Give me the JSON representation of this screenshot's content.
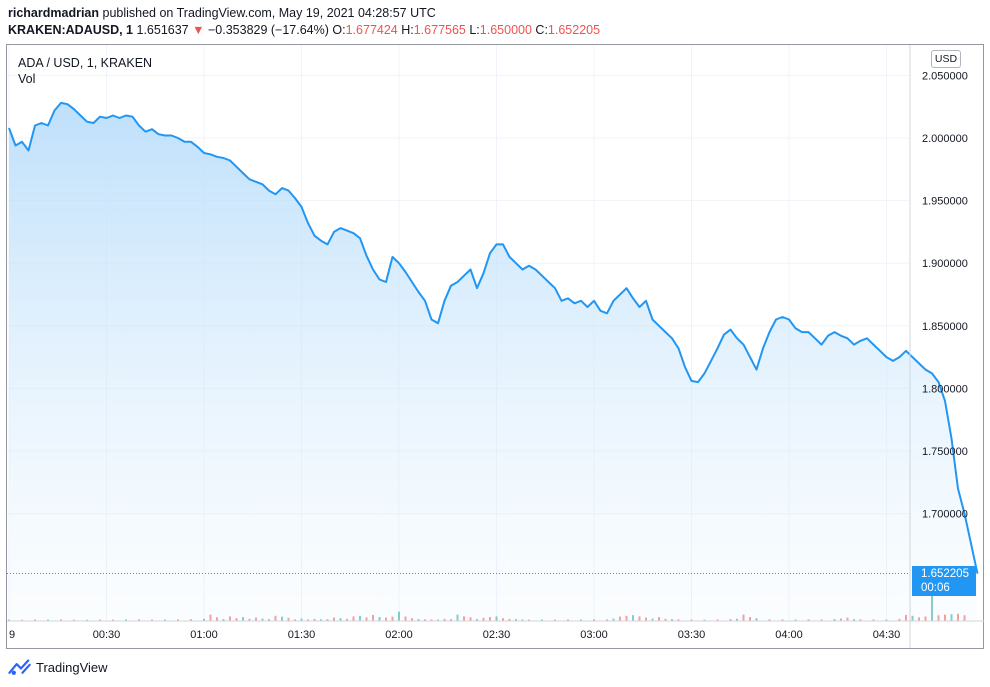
{
  "header": {
    "author": "richardmadrian",
    "published_text": " published on TradingView.com, May 19, 2021 04:28:57 UTC",
    "symbol": "KRAKEN:ADAUSD, 1",
    "last": "1.651637",
    "arrow": "▼",
    "change": "−0.353829 (−17.64%)",
    "o_label": "O:",
    "o_value": "1.677424",
    "h_label": "H:",
    "h_value": "1.677565",
    "l_label": "L:",
    "l_value": "1.650000",
    "c_label": "C:",
    "c_value": "1.652205"
  },
  "legend": {
    "title": "ADA / USD, 1, KRAKEN",
    "volume": "Vol"
  },
  "price_scale": {
    "currency": "USD"
  },
  "price_tag": {
    "price": "1.652205",
    "countdown": "00:06"
  },
  "footer": {
    "brand": "TradingView"
  },
  "colors": {
    "line": "#2196f3",
    "area_top": "#bbdefb",
    "vol_up": "#26a69a",
    "vol_down": "#ef5350",
    "grid": "#f0f3fa",
    "axis_text": "#131722"
  },
  "chart_data": {
    "type": "area",
    "title": "ADA / USD, 1, KRAKEN",
    "x_tick_labels": [
      "9",
      "00:30",
      "01:00",
      "01:30",
      "02:00",
      "02:30",
      "03:00",
      "03:30",
      "04:00",
      "04:30"
    ],
    "y_tick_labels": [
      "2.050000",
      "2.000000",
      "1.950000",
      "1.900000",
      "1.850000",
      "1.800000",
      "1.750000",
      "1.700000"
    ],
    "y_ticks": [
      2.05,
      2.0,
      1.95,
      1.9,
      1.85,
      1.8,
      1.75,
      1.7
    ],
    "ylim": [
      1.628,
      2.069
    ],
    "x_range_minutes": [
      0,
      290
    ],
    "last_price": 1.652205,
    "grid": true,
    "series": [
      {
        "values": [
          [
            0,
            2.008
          ],
          [
            2,
            1.994
          ],
          [
            4,
            1.997
          ],
          [
            6,
            1.99
          ],
          [
            8,
            2.01
          ],
          [
            10,
            2.012
          ],
          [
            12,
            2.01
          ],
          [
            14,
            2.022
          ],
          [
            16,
            2.028
          ],
          [
            18,
            2.027
          ],
          [
            20,
            2.023
          ],
          [
            22,
            2.018
          ],
          [
            24,
            2.013
          ],
          [
            26,
            2.012
          ],
          [
            28,
            2.017
          ],
          [
            30,
            2.016
          ],
          [
            32,
            2.018
          ],
          [
            34,
            2.016
          ],
          [
            36,
            2.018
          ],
          [
            38,
            2.017
          ],
          [
            40,
            2.01
          ],
          [
            42,
            2.005
          ],
          [
            44,
            2.007
          ],
          [
            46,
            2.003
          ],
          [
            48,
            2.002
          ],
          [
            50,
            2.002
          ],
          [
            52,
            2.0
          ],
          [
            54,
            1.997
          ],
          [
            56,
            1.997
          ],
          [
            58,
            1.993
          ],
          [
            60,
            1.988
          ],
          [
            62,
            1.987
          ],
          [
            64,
            1.985
          ],
          [
            66,
            1.984
          ],
          [
            68,
            1.982
          ],
          [
            70,
            1.977
          ],
          [
            72,
            1.972
          ],
          [
            74,
            1.967
          ],
          [
            76,
            1.965
          ],
          [
            78,
            1.963
          ],
          [
            80,
            1.958
          ],
          [
            82,
            1.955
          ],
          [
            84,
            1.96
          ],
          [
            86,
            1.958
          ],
          [
            88,
            1.952
          ],
          [
            90,
            1.945
          ],
          [
            92,
            1.932
          ],
          [
            94,
            1.922
          ],
          [
            96,
            1.918
          ],
          [
            98,
            1.915
          ],
          [
            100,
            1.925
          ],
          [
            102,
            1.928
          ],
          [
            104,
            1.926
          ],
          [
            106,
            1.924
          ],
          [
            108,
            1.92
          ],
          [
            110,
            1.906
          ],
          [
            112,
            1.895
          ],
          [
            114,
            1.887
          ],
          [
            116,
            1.885
          ],
          [
            118,
            1.905
          ],
          [
            120,
            1.9
          ],
          [
            122,
            1.893
          ],
          [
            124,
            1.885
          ],
          [
            126,
            1.877
          ],
          [
            128,
            1.87
          ],
          [
            130,
            1.855
          ],
          [
            132,
            1.852
          ],
          [
            134,
            1.87
          ],
          [
            136,
            1.882
          ],
          [
            138,
            1.885
          ],
          [
            140,
            1.89
          ],
          [
            142,
            1.895
          ],
          [
            144,
            1.88
          ],
          [
            146,
            1.892
          ],
          [
            148,
            1.908
          ],
          [
            150,
            1.915
          ],
          [
            152,
            1.915
          ],
          [
            154,
            1.905
          ],
          [
            156,
            1.9
          ],
          [
            158,
            1.895
          ],
          [
            160,
            1.898
          ],
          [
            162,
            1.895
          ],
          [
            164,
            1.89
          ],
          [
            166,
            1.885
          ],
          [
            168,
            1.88
          ],
          [
            170,
            1.87
          ],
          [
            172,
            1.872
          ],
          [
            174,
            1.868
          ],
          [
            176,
            1.87
          ],
          [
            178,
            1.865
          ],
          [
            180,
            1.87
          ],
          [
            182,
            1.862
          ],
          [
            184,
            1.86
          ],
          [
            186,
            1.87
          ],
          [
            188,
            1.875
          ],
          [
            190,
            1.88
          ],
          [
            192,
            1.872
          ],
          [
            194,
            1.865
          ],
          [
            196,
            1.87
          ],
          [
            198,
            1.855
          ],
          [
            200,
            1.85
          ],
          [
            202,
            1.845
          ],
          [
            204,
            1.84
          ],
          [
            206,
            1.832
          ],
          [
            208,
            1.817
          ],
          [
            210,
            1.806
          ],
          [
            212,
            1.805
          ],
          [
            214,
            1.812
          ],
          [
            216,
            1.822
          ],
          [
            218,
            1.832
          ],
          [
            220,
            1.843
          ],
          [
            222,
            1.847
          ],
          [
            224,
            1.84
          ],
          [
            226,
            1.835
          ],
          [
            228,
            1.825
          ],
          [
            230,
            1.815
          ],
          [
            232,
            1.832
          ],
          [
            234,
            1.845
          ],
          [
            236,
            1.855
          ],
          [
            238,
            1.857
          ],
          [
            240,
            1.855
          ],
          [
            242,
            1.848
          ],
          [
            244,
            1.845
          ],
          [
            246,
            1.845
          ],
          [
            248,
            1.84
          ],
          [
            250,
            1.835
          ],
          [
            252,
            1.842
          ],
          [
            254,
            1.845
          ],
          [
            256,
            1.842
          ],
          [
            258,
            1.84
          ],
          [
            260,
            1.835
          ],
          [
            262,
            1.838
          ],
          [
            264,
            1.84
          ],
          [
            266,
            1.835
          ],
          [
            268,
            1.83
          ],
          [
            270,
            1.825
          ],
          [
            272,
            1.822
          ],
          [
            274,
            1.825
          ],
          [
            276,
            1.83
          ],
          [
            278,
            1.825
          ],
          [
            280,
            1.82
          ],
          [
            282,
            1.815
          ],
          [
            284,
            1.812
          ],
          [
            286,
            1.805
          ],
          [
            288,
            1.79
          ],
          [
            290,
            1.76
          ],
          [
            292,
            1.72
          ],
          [
            294,
            1.7
          ],
          [
            296,
            1.676
          ],
          [
            298,
            1.652
          ]
        ]
      }
    ],
    "volume_series": [
      {
        "t": 0,
        "v": 0.03
      },
      {
        "t": 4,
        "v": 0.02
      },
      {
        "t": 8,
        "v": 0.04
      },
      {
        "t": 12,
        "v": 0.03
      },
      {
        "t": 16,
        "v": 0.05
      },
      {
        "t": 20,
        "v": 0.03
      },
      {
        "t": 24,
        "v": 0.02
      },
      {
        "t": 28,
        "v": 0.04
      },
      {
        "t": 32,
        "v": 0.03
      },
      {
        "t": 36,
        "v": 0.05
      },
      {
        "t": 40,
        "v": 0.06
      },
      {
        "t": 44,
        "v": 0.03
      },
      {
        "t": 48,
        "v": 0.04
      },
      {
        "t": 52,
        "v": 0.05
      },
      {
        "t": 56,
        "v": 0.07
      },
      {
        "t": 60,
        "v": 0.1
      },
      {
        "t": 62,
        "v": 0.45
      },
      {
        "t": 64,
        "v": 0.22
      },
      {
        "t": 66,
        "v": 0.08
      },
      {
        "t": 68,
        "v": 0.3
      },
      {
        "t": 70,
        "v": 0.15
      },
      {
        "t": 72,
        "v": 0.25
      },
      {
        "t": 74,
        "v": 0.1
      },
      {
        "t": 76,
        "v": 0.2
      },
      {
        "t": 78,
        "v": 0.12
      },
      {
        "t": 80,
        "v": 0.08
      },
      {
        "t": 82,
        "v": 0.35
      },
      {
        "t": 84,
        "v": 0.28
      },
      {
        "t": 86,
        "v": 0.18
      },
      {
        "t": 88,
        "v": 0.06
      },
      {
        "t": 90,
        "v": 0.12
      },
      {
        "t": 92,
        "v": 0.05
      },
      {
        "t": 94,
        "v": 0.1
      },
      {
        "t": 96,
        "v": 0.06
      },
      {
        "t": 98,
        "v": 0.08
      },
      {
        "t": 100,
        "v": 0.2
      },
      {
        "t": 102,
        "v": 0.15
      },
      {
        "t": 104,
        "v": 0.1
      },
      {
        "t": 106,
        "v": 0.3
      },
      {
        "t": 108,
        "v": 0.35
      },
      {
        "t": 110,
        "v": 0.22
      },
      {
        "t": 112,
        "v": 0.42
      },
      {
        "t": 114,
        "v": 0.25
      },
      {
        "t": 116,
        "v": 0.2
      },
      {
        "t": 118,
        "v": 0.28
      },
      {
        "t": 120,
        "v": 0.7
      },
      {
        "t": 122,
        "v": 0.3
      },
      {
        "t": 124,
        "v": 0.15
      },
      {
        "t": 126,
        "v": 0.08
      },
      {
        "t": 128,
        "v": 0.06
      },
      {
        "t": 130,
        "v": 0.05
      },
      {
        "t": 132,
        "v": 0.04
      },
      {
        "t": 134,
        "v": 0.1
      },
      {
        "t": 136,
        "v": 0.08
      },
      {
        "t": 138,
        "v": 0.45
      },
      {
        "t": 140,
        "v": 0.3
      },
      {
        "t": 142,
        "v": 0.22
      },
      {
        "t": 144,
        "v": 0.08
      },
      {
        "t": 146,
        "v": 0.18
      },
      {
        "t": 148,
        "v": 0.25
      },
      {
        "t": 150,
        "v": 0.3
      },
      {
        "t": 152,
        "v": 0.15
      },
      {
        "t": 154,
        "v": 0.1
      },
      {
        "t": 156,
        "v": 0.08
      },
      {
        "t": 158,
        "v": 0.05
      },
      {
        "t": 160,
        "v": 0.03
      },
      {
        "t": 164,
        "v": 0.04
      },
      {
        "t": 168,
        "v": 0.03
      },
      {
        "t": 172,
        "v": 0.05
      },
      {
        "t": 176,
        "v": 0.04
      },
      {
        "t": 180,
        "v": 0.06
      },
      {
        "t": 184,
        "v": 0.05
      },
      {
        "t": 186,
        "v": 0.12
      },
      {
        "t": 188,
        "v": 0.28
      },
      {
        "t": 190,
        "v": 0.35
      },
      {
        "t": 192,
        "v": 0.4
      },
      {
        "t": 194,
        "v": 0.3
      },
      {
        "t": 196,
        "v": 0.2
      },
      {
        "t": 198,
        "v": 0.12
      },
      {
        "t": 200,
        "v": 0.25
      },
      {
        "t": 202,
        "v": 0.1
      },
      {
        "t": 204,
        "v": 0.08
      },
      {
        "t": 206,
        "v": 0.05
      },
      {
        "t": 210,
        "v": 0.04
      },
      {
        "t": 214,
        "v": 0.03
      },
      {
        "t": 218,
        "v": 0.05
      },
      {
        "t": 222,
        "v": 0.08
      },
      {
        "t": 224,
        "v": 0.1
      },
      {
        "t": 226,
        "v": 0.45
      },
      {
        "t": 228,
        "v": 0.25
      },
      {
        "t": 230,
        "v": 0.15
      },
      {
        "t": 234,
        "v": 0.06
      },
      {
        "t": 238,
        "v": 0.05
      },
      {
        "t": 242,
        "v": 0.04
      },
      {
        "t": 246,
        "v": 0.06
      },
      {
        "t": 250,
        "v": 0.05
      },
      {
        "t": 254,
        "v": 0.08
      },
      {
        "t": 256,
        "v": 0.12
      },
      {
        "t": 258,
        "v": 0.2
      },
      {
        "t": 260,
        "v": 0.08
      },
      {
        "t": 262,
        "v": 0.06
      },
      {
        "t": 266,
        "v": 0.05
      },
      {
        "t": 270,
        "v": 0.04
      },
      {
        "t": 274,
        "v": 0.1
      },
      {
        "t": 276,
        "v": 0.42
      },
      {
        "t": 278,
        "v": 0.35
      },
      {
        "t": 280,
        "v": 0.22
      },
      {
        "t": 282,
        "v": 0.3
      },
      {
        "t": 284,
        "v": 3.2
      },
      {
        "t": 286,
        "v": 0.4
      },
      {
        "t": 288,
        "v": 0.45
      },
      {
        "t": 290,
        "v": 0.48
      },
      {
        "t": 292,
        "v": 0.52
      },
      {
        "t": 294,
        "v": 0.4
      }
    ]
  }
}
